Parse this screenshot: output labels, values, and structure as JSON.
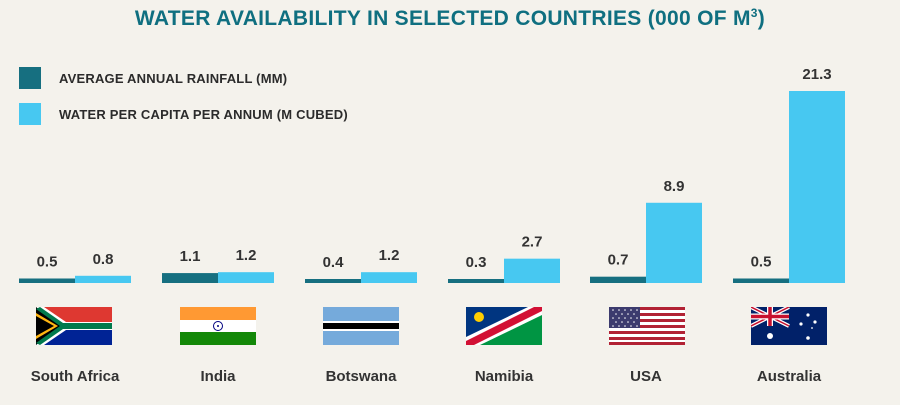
{
  "colors": {
    "rainfall": "#166f80",
    "water": "#47c8f1",
    "title": "#0f6f80"
  },
  "chart_data": {
    "type": "bar",
    "title": "WATER AVAILABILITY IN SELECTED COUNTRIES (000 OF M",
    "title_superscript": "3",
    "title_suffix": ")",
    "categories": [
      "South Africa",
      "India",
      "Botswana",
      "Namibia",
      "USA",
      "Australia"
    ],
    "series": [
      {
        "name": "AVERAGE ANNUAL RAINFALL (MM)",
        "values": [
          0.5,
          1.1,
          0.4,
          0.3,
          0.7,
          0.5
        ],
        "labels": [
          "0.5",
          "1.1",
          "0.4",
          "0.3",
          "0.7",
          "0.5"
        ]
      },
      {
        "name": "WATER PER CAPITA PER ANNUM (M CUBED)",
        "values": [
          0.8,
          1.2,
          1.2,
          2.7,
          8.9,
          21.3
        ],
        "labels": [
          "0.8",
          "1.2",
          "1.2",
          "2.7",
          "8.9",
          "21.3"
        ]
      }
    ],
    "ylim": [
      0,
      21.3
    ],
    "grid": false,
    "legend_position": "top-left",
    "icons": [
      "south-africa-flag-icon",
      "india-flag-icon",
      "botswana-flag-icon",
      "namibia-flag-icon",
      "usa-flag-icon",
      "australia-flag-icon"
    ]
  }
}
